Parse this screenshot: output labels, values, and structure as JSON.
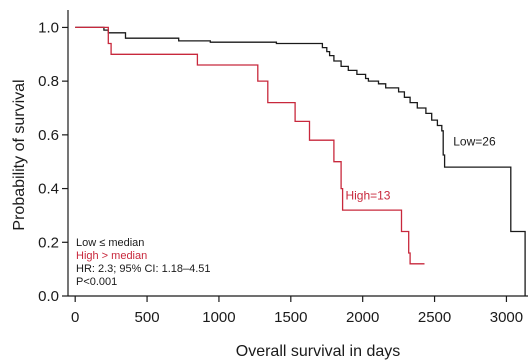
{
  "chart_data": {
    "type": "line",
    "subtype": "kaplan-meier",
    "xlabel": "Overall survival in days",
    "ylabel": "Probability of survival",
    "xlim": [
      -50,
      3150
    ],
    "ylim": [
      0,
      1.05
    ],
    "x_ticks": [
      0,
      500,
      1000,
      1500,
      2000,
      2500,
      3000
    ],
    "y_ticks": [
      0.0,
      0.2,
      0.4,
      0.6,
      0.8,
      1.0
    ],
    "x_tick_labels": [
      "0",
      "500",
      "1000",
      "1500",
      "2000",
      "2500",
      "3000"
    ],
    "y_tick_labels": [
      "0.0",
      "0.2",
      "0.4",
      "0.6",
      "0.8",
      "1.0"
    ],
    "grid": false,
    "series": [
      {
        "name": "Low=26",
        "color": "#1a1a1a",
        "points": [
          [
            0,
            1.0
          ],
          [
            200,
            1.0
          ],
          [
            200,
            0.99
          ],
          [
            230,
            0.99
          ],
          [
            230,
            0.98
          ],
          [
            350,
            0.98
          ],
          [
            350,
            0.96
          ],
          [
            720,
            0.96
          ],
          [
            720,
            0.95
          ],
          [
            940,
            0.95
          ],
          [
            940,
            0.945
          ],
          [
            1400,
            0.945
          ],
          [
            1400,
            0.94
          ],
          [
            1720,
            0.94
          ],
          [
            1720,
            0.925
          ],
          [
            1750,
            0.925
          ],
          [
            1750,
            0.91
          ],
          [
            1770,
            0.91
          ],
          [
            1770,
            0.895
          ],
          [
            1800,
            0.895
          ],
          [
            1800,
            0.875
          ],
          [
            1850,
            0.875
          ],
          [
            1850,
            0.855
          ],
          [
            1900,
            0.855
          ],
          [
            1900,
            0.84
          ],
          [
            1960,
            0.84
          ],
          [
            1960,
            0.825
          ],
          [
            2020,
            0.825
          ],
          [
            2020,
            0.81
          ],
          [
            2040,
            0.81
          ],
          [
            2040,
            0.8
          ],
          [
            2110,
            0.8
          ],
          [
            2110,
            0.79
          ],
          [
            2160,
            0.79
          ],
          [
            2160,
            0.775
          ],
          [
            2250,
            0.775
          ],
          [
            2250,
            0.76
          ],
          [
            2290,
            0.76
          ],
          [
            2290,
            0.74
          ],
          [
            2330,
            0.74
          ],
          [
            2330,
            0.72
          ],
          [
            2380,
            0.72
          ],
          [
            2380,
            0.7
          ],
          [
            2440,
            0.7
          ],
          [
            2440,
            0.68
          ],
          [
            2480,
            0.68
          ],
          [
            2480,
            0.655
          ],
          [
            2520,
            0.655
          ],
          [
            2520,
            0.635
          ],
          [
            2550,
            0.635
          ],
          [
            2550,
            0.615
          ],
          [
            2560,
            0.615
          ],
          [
            2560,
            0.525
          ],
          [
            2570,
            0.525
          ],
          [
            2570,
            0.48
          ],
          [
            3030,
            0.48
          ],
          [
            3030,
            0.24
          ],
          [
            3130,
            0.24
          ],
          [
            3130,
            0.0
          ]
        ]
      },
      {
        "name": "High=13",
        "color": "#c8283c",
        "points": [
          [
            0,
            1.0
          ],
          [
            230,
            1.0
          ],
          [
            230,
            0.94
          ],
          [
            250,
            0.94
          ],
          [
            250,
            0.9
          ],
          [
            850,
            0.9
          ],
          [
            850,
            0.86
          ],
          [
            1270,
            0.86
          ],
          [
            1270,
            0.8
          ],
          [
            1340,
            0.8
          ],
          [
            1340,
            0.72
          ],
          [
            1530,
            0.72
          ],
          [
            1530,
            0.65
          ],
          [
            1630,
            0.65
          ],
          [
            1630,
            0.58
          ],
          [
            1800,
            0.58
          ],
          [
            1800,
            0.5
          ],
          [
            1850,
            0.5
          ],
          [
            1850,
            0.4
          ],
          [
            1860,
            0.4
          ],
          [
            1860,
            0.32
          ],
          [
            2270,
            0.32
          ],
          [
            2270,
            0.24
          ],
          [
            2320,
            0.24
          ],
          [
            2320,
            0.16
          ],
          [
            2330,
            0.16
          ],
          [
            2330,
            0.12
          ],
          [
            2430,
            0.12
          ]
        ]
      }
    ],
    "legend": {
      "position": "bottom-left",
      "lines": [
        {
          "text": "Low ≤ median",
          "color": "#1a1a1a"
        },
        {
          "text": "High > median",
          "color": "#c8283c"
        },
        {
          "text": "HR: 2.3; 95% CI: 1.18–4.51",
          "color": "#1a1a1a"
        },
        {
          "text": "P<0.001",
          "color": "#1a1a1a"
        }
      ]
    },
    "curve_labels": [
      {
        "text": "Low=26",
        "x": 2630,
        "y": 0.56,
        "color": "#1a1a1a"
      },
      {
        "text": "High=13",
        "x": 1880,
        "y": 0.36,
        "color": "#c8283c"
      }
    ]
  }
}
